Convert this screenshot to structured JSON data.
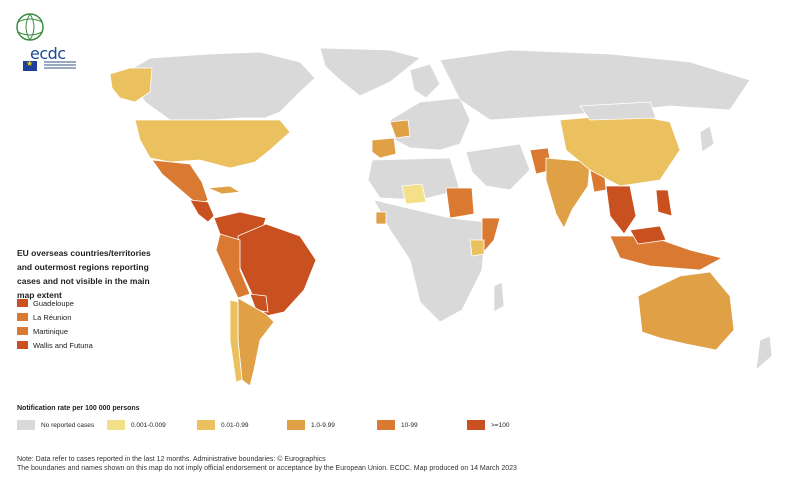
{
  "logo": {
    "text": "ecdc"
  },
  "overseas": {
    "title": "EU overseas countries/territories and outermost regions reporting cases and not visible in the main map extent",
    "items": [
      {
        "label": "Guadeloupe",
        "color": "#c9501f"
      },
      {
        "label": "La Réunion",
        "color": "#da7a32"
      },
      {
        "label": "Martinique",
        "color": "#da7a32"
      },
      {
        "label": "Wallis and Futuna",
        "color": "#c9501f"
      }
    ]
  },
  "legend": {
    "title": "Notification rate per 100 000 persons",
    "items": [
      {
        "label": "No reported cases",
        "color": "#d9d9d9"
      },
      {
        "label": "0.001-0.009",
        "color": "#f5e08a"
      },
      {
        "label": "0.01-0.99",
        "color": "#ebc15f"
      },
      {
        "label": "1.0-9.99",
        "color": "#e0a146"
      },
      {
        "label": "10-99",
        "color": "#da7a32"
      },
      {
        "label": ">=100",
        "color": "#c9501f"
      }
    ]
  },
  "notes": {
    "line1": "Note: Data refer to cases reported in the last 12 months. Administrative boundaries: © Eurographics",
    "line2": "The boundaries and names shown on this map do not imply official endorsement or acceptance by the European Union. ECDC. Map produced on 14 March 2023"
  }
}
